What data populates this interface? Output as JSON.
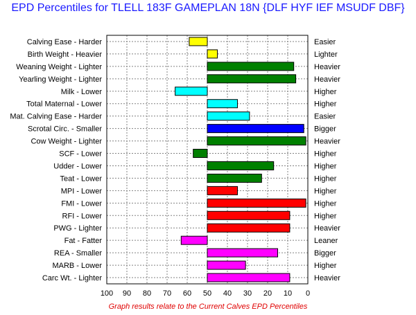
{
  "chart_data": {
    "type": "bar",
    "title": "EPD Percentiles for TLELL 183F GAMEPLAN 18N {DLF HYF IEF MSUDF DBF}",
    "footnote": "Graph results relate to the Current Calves EPD Percentiles",
    "xlim": [
      100,
      0
    ],
    "baseline": 50,
    "x_ticks": [
      "100",
      "90",
      "80",
      "70",
      "60",
      "50",
      "40",
      "30",
      "20",
      "10",
      "0"
    ],
    "grid": true,
    "colors": {
      "yellow": "#ffff00",
      "green": "#008000",
      "cyan": "#00ffff",
      "blue": "#0000ff",
      "red": "#ff0000",
      "magenta": "#ff00ff"
    },
    "traits": [
      {
        "left": "Calving Ease - Harder",
        "right": "Easier",
        "value": 59,
        "color": "#ffff00"
      },
      {
        "left": "Birth Weight - Heavier",
        "right": "Lighter",
        "value": 45,
        "color": "#ffff00"
      },
      {
        "left": "Weaning Weight - Lighter",
        "right": "Heavier",
        "value": 7,
        "color": "#008000"
      },
      {
        "left": "Yearling Weight - Lighter",
        "right": "Heavier",
        "value": 6,
        "color": "#008000"
      },
      {
        "left": "Milk - Lower",
        "right": "Higher",
        "value": 66,
        "color": "#00ffff"
      },
      {
        "left": "Total Maternal - Lower",
        "right": "Higher",
        "value": 35,
        "color": "#00ffff"
      },
      {
        "left": "Mat. Calving Ease - Harder",
        "right": "Easier",
        "value": 29,
        "color": "#00ffff"
      },
      {
        "left": "Scrotal Circ. - Smaller",
        "right": "Bigger",
        "value": 2,
        "color": "#0000ff"
      },
      {
        "left": "Cow Weight - Lighter",
        "right": "Heavier",
        "value": 1,
        "color": "#008000"
      },
      {
        "left": "SCF - Lower",
        "right": "Higher",
        "value": 57,
        "color": "#008000"
      },
      {
        "left": "Udder - Lower",
        "right": "Higher",
        "value": 17,
        "color": "#008000"
      },
      {
        "left": "Teat - Lower",
        "right": "Higher",
        "value": 23,
        "color": "#008000"
      },
      {
        "left": "MPI - Lower",
        "right": "Higher",
        "value": 35,
        "color": "#ff0000"
      },
      {
        "left": "FMI - Lower",
        "right": "Higher",
        "value": 1,
        "color": "#ff0000"
      },
      {
        "left": "RFI - Lower",
        "right": "Higher",
        "value": 9,
        "color": "#ff0000"
      },
      {
        "left": "PWG - Lighter",
        "right": "Heavier",
        "value": 9,
        "color": "#ff0000"
      },
      {
        "left": "Fat - Fatter",
        "right": "Leaner",
        "value": 63,
        "color": "#ff00ff"
      },
      {
        "left": "REA - Smaller",
        "right": "Bigger",
        "value": 15,
        "color": "#ff00ff"
      },
      {
        "left": "MARB - Lower",
        "right": "Higher",
        "value": 31,
        "color": "#ff00ff"
      },
      {
        "left": "Carc Wt. - Lighter",
        "right": "Heavier",
        "value": 9,
        "color": "#ff00ff"
      }
    ]
  }
}
